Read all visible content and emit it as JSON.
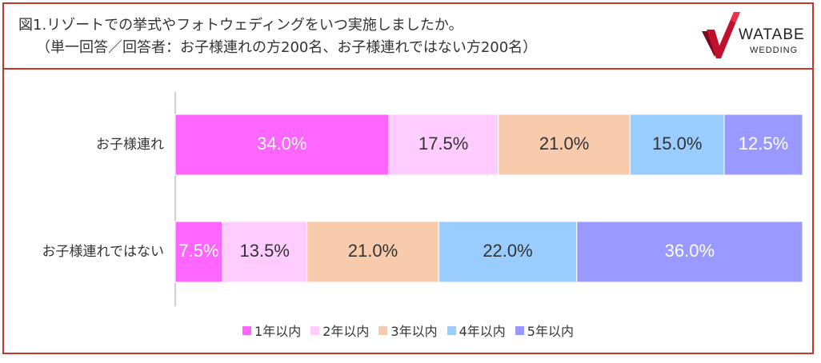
{
  "header": {
    "title_line1": "図1.リゾートでの挙式やフォトウェディングをいつ実施しましたか。",
    "title_line2": "（単一回答／回答者：お子様連れの方200名、お子様連れではない方200名）"
  },
  "logo": {
    "brand": "WATABE",
    "sub": "WEDDING",
    "icon": "watabe-logo-check-icon",
    "colors": {
      "red": "#c0102e",
      "dark": "#7a0a1c"
    }
  },
  "chart_data": {
    "type": "bar",
    "orientation": "horizontal",
    "stacked": true,
    "categories": [
      "お子様連れ",
      "お子様連れではない"
    ],
    "series": [
      {
        "name": "1年以内",
        "values": [
          34.0,
          7.5
        ],
        "labels": [
          "34.0%",
          "7.5%"
        ],
        "color": "#ff66ff",
        "label_color": "#ffffff"
      },
      {
        "name": "2年以内",
        "values": [
          17.5,
          13.5
        ],
        "labels": [
          "17.5%",
          "13.5%"
        ],
        "color": "#ffccff",
        "label_color": "#333333"
      },
      {
        "name": "3年以内",
        "values": [
          21.0,
          21.0
        ],
        "labels": [
          "21.0%",
          "21.0%"
        ],
        "color": "#f8cbad",
        "label_color": "#333333"
      },
      {
        "name": "4年以内",
        "values": [
          15.0,
          22.0
        ],
        "labels": [
          "15.0%",
          "22.0%"
        ],
        "color": "#99ccff",
        "label_color": "#333333"
      },
      {
        "name": "5年以内",
        "values": [
          12.5,
          36.0
        ],
        "labels": [
          "12.5%",
          "36.0%"
        ],
        "color": "#9999ff",
        "label_color": "#ffffff"
      }
    ],
    "xlim": [
      0,
      100
    ],
    "grid": false,
    "legend": "bottom"
  }
}
